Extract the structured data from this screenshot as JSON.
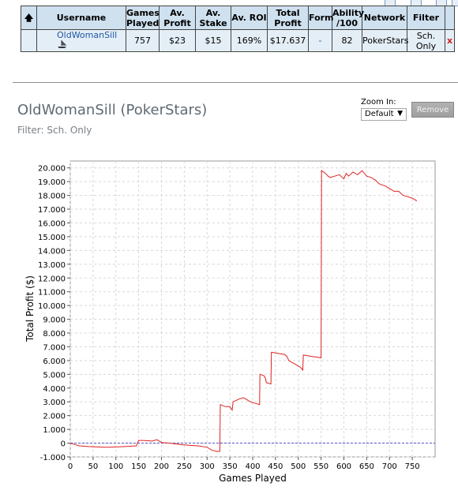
{
  "table": {
    "headers": [
      "",
      "Username",
      "Games Played",
      "Av. Profit",
      "Av. Stake",
      "Av. ROI",
      "Total Profit",
      "Form",
      "Ability /100",
      "Network",
      "Filter",
      ""
    ],
    "row": {
      "username": "OldWomanSill",
      "games_played": "757",
      "av_profit": "$23",
      "av_stake": "$15",
      "av_roi": "169%",
      "total_profit": "$17.637",
      "form": "-",
      "ability": "82",
      "network": "PokerStars",
      "filter": "Sch. Only",
      "remove": "x"
    }
  },
  "header": {
    "title": "OldWomanSill (PokerStars)",
    "filter_text": "Filter: Sch. Only"
  },
  "zoom": {
    "label": "Zoom In:",
    "selected": "Default"
  },
  "remove_button": "Remove",
  "icons": {
    "sort": "arrow-up-icon",
    "network": "pokerstars-icon"
  },
  "colors": {
    "series": "#dd2222",
    "zero_line": "#5555cc",
    "header_bg": "#cfe1ef",
    "row_bg": "#e4eef6",
    "link": "#1f57a5"
  },
  "chart_data": {
    "type": "line",
    "xlabel": "Games Played",
    "ylabel": "Total Profit ($)",
    "xlim": [
      0,
      800
    ],
    "ylim": [
      -1000,
      20500
    ],
    "x_ticks": [
      0,
      50,
      100,
      150,
      200,
      250,
      300,
      350,
      400,
      450,
      500,
      550,
      600,
      650,
      700,
      750
    ],
    "y_ticks": [
      -1000,
      0,
      1000,
      2000,
      3000,
      4000,
      5000,
      6000,
      7000,
      8000,
      9000,
      10000,
      11000,
      12000,
      13000,
      14000,
      15000,
      16000,
      17000,
      18000,
      19000,
      20000
    ],
    "y_tick_labels": [
      "-1.000",
      "0",
      "1.000",
      "2.000",
      "3.000",
      "4.000",
      "5.000",
      "6.000",
      "7.000",
      "8.000",
      "9.000",
      "10.000",
      "11.000",
      "12.000",
      "13.000",
      "14.000",
      "15.000",
      "16.000",
      "17.000",
      "18.000",
      "19.000",
      "20.000"
    ],
    "grid": true,
    "series": [
      {
        "x": [
          0,
          10,
          20,
          40,
          60,
          80,
          100,
          120,
          145,
          150,
          160,
          180,
          190,
          200,
          220,
          240,
          260,
          280,
          300,
          310,
          320,
          328,
          329,
          340,
          350,
          355,
          357,
          370,
          380,
          385,
          395,
          410,
          415,
          416,
          425,
          428,
          430,
          440,
          441,
          450,
          460,
          470,
          475,
          478,
          479,
          490,
          500,
          505,
          510,
          511,
          520,
          530,
          540,
          550,
          551,
          560,
          565,
          570,
          580,
          590,
          600,
          605,
          610,
          620,
          630,
          640,
          650,
          660,
          670,
          675,
          680,
          690,
          700,
          710,
          720,
          730,
          740,
          750,
          760
        ],
        "y": [
          0,
          -100,
          -200,
          -250,
          -280,
          -300,
          -280,
          -250,
          -200,
          200,
          200,
          150,
          250,
          50,
          0,
          -100,
          -150,
          -200,
          -300,
          -500,
          -600,
          -600,
          2800,
          2650,
          2650,
          2400,
          3000,
          3200,
          3300,
          3200,
          3000,
          2850,
          2800,
          5000,
          4900,
          4700,
          4400,
          4300,
          6600,
          6550,
          6500,
          6450,
          6300,
          6100,
          6000,
          5800,
          5600,
          5500,
          5300,
          6400,
          6350,
          6300,
          6250,
          6200,
          19800,
          19600,
          19400,
          19300,
          19400,
          19500,
          19200,
          19600,
          19400,
          19700,
          19500,
          19800,
          19400,
          19300,
          19100,
          18900,
          18800,
          18700,
          18500,
          18300,
          18300,
          18000,
          17900,
          17800,
          17600
        ]
      }
    ]
  }
}
